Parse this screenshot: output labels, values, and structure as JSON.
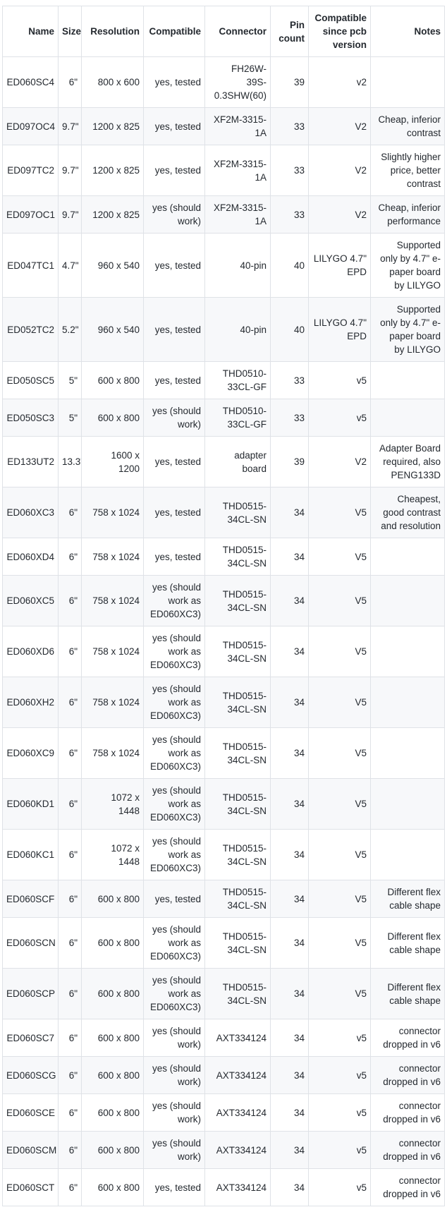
{
  "colors": {
    "text": "#24292f",
    "border": "#dfe2e7",
    "stripe_row_background": "#f7f8fa",
    "background": "#ffffff"
  },
  "table": {
    "columns": [
      {
        "key": "name",
        "label": "Name"
      },
      {
        "key": "size",
        "label": "Size"
      },
      {
        "key": "resolution",
        "label": "Resolution"
      },
      {
        "key": "compatible",
        "label": "Compatible"
      },
      {
        "key": "connector",
        "label": "Connector"
      },
      {
        "key": "pin_count",
        "label": "Pin\ncount"
      },
      {
        "key": "since",
        "label": "Compatible\nsince pcb\nversion"
      },
      {
        "key": "notes",
        "label": "Notes"
      }
    ],
    "rows": [
      {
        "name": "ED060SC4",
        "size": "6\"",
        "resolution": "800 x 600",
        "compatible": "yes, tested",
        "connector": "FH26W-\n39S-\n0.3SHW(60)",
        "pin_count": "39",
        "since": "v2",
        "notes": ""
      },
      {
        "name": "ED097OC4",
        "size": "9.7\"",
        "resolution": "1200 x 825",
        "compatible": "yes, tested",
        "connector": "XF2M-3315-\n1A",
        "pin_count": "33",
        "since": "V2",
        "notes": "Cheap, inferior\ncontrast"
      },
      {
        "name": "ED097TC2",
        "size": "9.7\"",
        "resolution": "1200 x 825",
        "compatible": "yes, tested",
        "connector": "XF2M-3315-\n1A",
        "pin_count": "33",
        "since": "V2",
        "notes": "Slightly higher\nprice, better\ncontrast"
      },
      {
        "name": "ED097OC1",
        "size": "9.7\"",
        "resolution": "1200 x 825",
        "compatible": "yes (should\nwork)",
        "connector": "XF2M-3315-\n1A",
        "pin_count": "33",
        "since": "V2",
        "notes": "Cheap, inferior\nperformance"
      },
      {
        "name": "ED047TC1",
        "size": "4.7\"",
        "resolution": "960 x 540",
        "compatible": "yes, tested",
        "connector": "40-pin",
        "pin_count": "40",
        "since": "LILYGO 4.7\"\nEPD",
        "notes": "Supported\nonly by 4.7\" e-\npaper board\nby LILYGO"
      },
      {
        "name": "ED052TC2",
        "size": "5.2\"",
        "resolution": "960 x 540",
        "compatible": "yes, tested",
        "connector": "40-pin",
        "pin_count": "40",
        "since": "LILYGO 4.7\"\nEPD",
        "notes": "Supported\nonly by 4.7\" e-\npaper board\nby LILYGO"
      },
      {
        "name": "ED050SC5",
        "size": "5\"",
        "resolution": "600 x 800",
        "compatible": "yes, tested",
        "connector": "THD0510-\n33CL-GF",
        "pin_count": "33",
        "since": "v5",
        "notes": ""
      },
      {
        "name": "ED050SC3",
        "size": "5\"",
        "resolution": "600 x 800",
        "compatible": "yes (should\nwork)",
        "connector": "THD0510-\n33CL-GF",
        "pin_count": "33",
        "since": "v5",
        "notes": ""
      },
      {
        "name": "ED133UT2",
        "size": "13.3\"",
        "resolution": "1600 x\n1200",
        "compatible": "yes, tested",
        "connector": "adapter\nboard",
        "pin_count": "39",
        "since": "V2",
        "notes": "Adapter Board\nrequired, also\nPENG133D"
      },
      {
        "name": "ED060XC3",
        "size": "6\"",
        "resolution": "758 x 1024",
        "compatible": "yes, tested",
        "connector": "THD0515-\n34CL-SN",
        "pin_count": "34",
        "since": "V5",
        "notes": "Cheapest,\ngood contrast\nand resolution"
      },
      {
        "name": "ED060XD4",
        "size": "6\"",
        "resolution": "758 x 1024",
        "compatible": "yes, tested",
        "connector": "THD0515-\n34CL-SN",
        "pin_count": "34",
        "since": "V5",
        "notes": ""
      },
      {
        "name": "ED060XC5",
        "size": "6\"",
        "resolution": "758 x 1024",
        "compatible": "yes (should\nwork as\nED060XC3)",
        "connector": "THD0515-\n34CL-SN",
        "pin_count": "34",
        "since": "V5",
        "notes": ""
      },
      {
        "name": "ED060XD6",
        "size": "6\"",
        "resolution": "758 x 1024",
        "compatible": "yes (should\nwork as\nED060XC3)",
        "connector": "THD0515-\n34CL-SN",
        "pin_count": "34",
        "since": "V5",
        "notes": ""
      },
      {
        "name": "ED060XH2",
        "size": "6\"",
        "resolution": "758 x 1024",
        "compatible": "yes (should\nwork as\nED060XC3)",
        "connector": "THD0515-\n34CL-SN",
        "pin_count": "34",
        "since": "V5",
        "notes": ""
      },
      {
        "name": "ED060XC9",
        "size": "6\"",
        "resolution": "758 x 1024",
        "compatible": "yes (should\nwork as\nED060XC3)",
        "connector": "THD0515-\n34CL-SN",
        "pin_count": "34",
        "since": "V5",
        "notes": ""
      },
      {
        "name": "ED060KD1",
        "size": "6\"",
        "resolution": "1072 x\n1448",
        "compatible": "yes (should\nwork as\nED060XC3)",
        "connector": "THD0515-\n34CL-SN",
        "pin_count": "34",
        "since": "V5",
        "notes": ""
      },
      {
        "name": "ED060KC1",
        "size": "6\"",
        "resolution": "1072 x\n1448",
        "compatible": "yes (should\nwork as\nED060XC3)",
        "connector": "THD0515-\n34CL-SN",
        "pin_count": "34",
        "since": "V5",
        "notes": ""
      },
      {
        "name": "ED060SCF",
        "size": "6\"",
        "resolution": "600 x 800",
        "compatible": "yes, tested",
        "connector": "THD0515-\n34CL-SN",
        "pin_count": "34",
        "since": "V5",
        "notes": "Different flex\ncable shape"
      },
      {
        "name": "ED060SCN",
        "size": "6\"",
        "resolution": "600 x 800",
        "compatible": "yes (should\nwork as\nED060XC3)",
        "connector": "THD0515-\n34CL-SN",
        "pin_count": "34",
        "since": "V5",
        "notes": "Different flex\ncable shape"
      },
      {
        "name": "ED060SCP",
        "size": "6\"",
        "resolution": "600 x 800",
        "compatible": "yes (should\nwork as\nED060XC3)",
        "connector": "THD0515-\n34CL-SN",
        "pin_count": "34",
        "since": "V5",
        "notes": "Different flex\ncable shape"
      },
      {
        "name": "ED060SC7",
        "size": "6\"",
        "resolution": "600 x 800",
        "compatible": "yes (should\nwork)",
        "connector": "AXT334124",
        "pin_count": "34",
        "since": "v5",
        "notes": "connector\ndropped in v6"
      },
      {
        "name": "ED060SCG",
        "size": "6\"",
        "resolution": "600 x 800",
        "compatible": "yes (should\nwork)",
        "connector": "AXT334124",
        "pin_count": "34",
        "since": "v5",
        "notes": "connector\ndropped in v6"
      },
      {
        "name": "ED060SCE",
        "size": "6\"",
        "resolution": "600 x 800",
        "compatible": "yes (should\nwork)",
        "connector": "AXT334124",
        "pin_count": "34",
        "since": "v5",
        "notes": "connector\ndropped in v6"
      },
      {
        "name": "ED060SCM",
        "size": "6\"",
        "resolution": "600 x 800",
        "compatible": "yes (should\nwork)",
        "connector": "AXT334124",
        "pin_count": "34",
        "since": "v5",
        "notes": "connector\ndropped in v6"
      },
      {
        "name": "ED060SCT",
        "size": "6\"",
        "resolution": "600 x 800",
        "compatible": "yes, tested",
        "connector": "AXT334124",
        "pin_count": "34",
        "since": "v5",
        "notes": "connector\ndropped in v6"
      }
    ]
  }
}
